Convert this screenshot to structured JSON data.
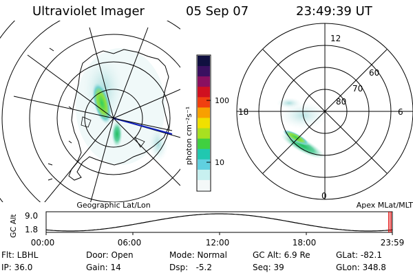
{
  "header": {
    "title": "Ultraviolet Imager",
    "date": "05 Sep 07",
    "time": "23:49:39 UT"
  },
  "geo_panel": {
    "label": "Geographic Lat/Lon"
  },
  "apex_panel": {
    "label": "Apex MLat/MLT",
    "mlt_labels": {
      "top": "12",
      "left": "18",
      "right": "6",
      "bottom": "0"
    },
    "lat_labels": [
      "60",
      "70",
      "80"
    ]
  },
  "colorbar": {
    "unit_label": "photon cm⁻²s⁻¹",
    "ticks": [
      "100",
      "10"
    ],
    "colors": [
      "#101040",
      "#3a1060",
      "#8a1060",
      "#d01020",
      "#f04010",
      "#f8a000",
      "#f0e000",
      "#a8e020",
      "#40d040",
      "#20c8b0",
      "#60d0e0",
      "#c8f0f0",
      "#f4f8f8"
    ]
  },
  "altitude_plot": {
    "ylabel": "GC Alt",
    "ymax_label": "9.0",
    "ymin_label": "1.8",
    "x_ticks": [
      "00:00",
      "06:00",
      "12:00",
      "18:00",
      "23:59"
    ],
    "marker_color": "#e00000"
  },
  "status": {
    "flt": "Flt: LBHL",
    "ip": "IP: 36.0",
    "door": "Door: Open",
    "gain": "Gain: 14",
    "mode": "Mode: Normal",
    "dsp": "Dsp:   -5.2",
    "gcalt": "GC Alt: 6.9 Re",
    "seq": "Seq: 39",
    "glat": "GLat: -82.1",
    "glon": "GLon: 348.8"
  }
}
